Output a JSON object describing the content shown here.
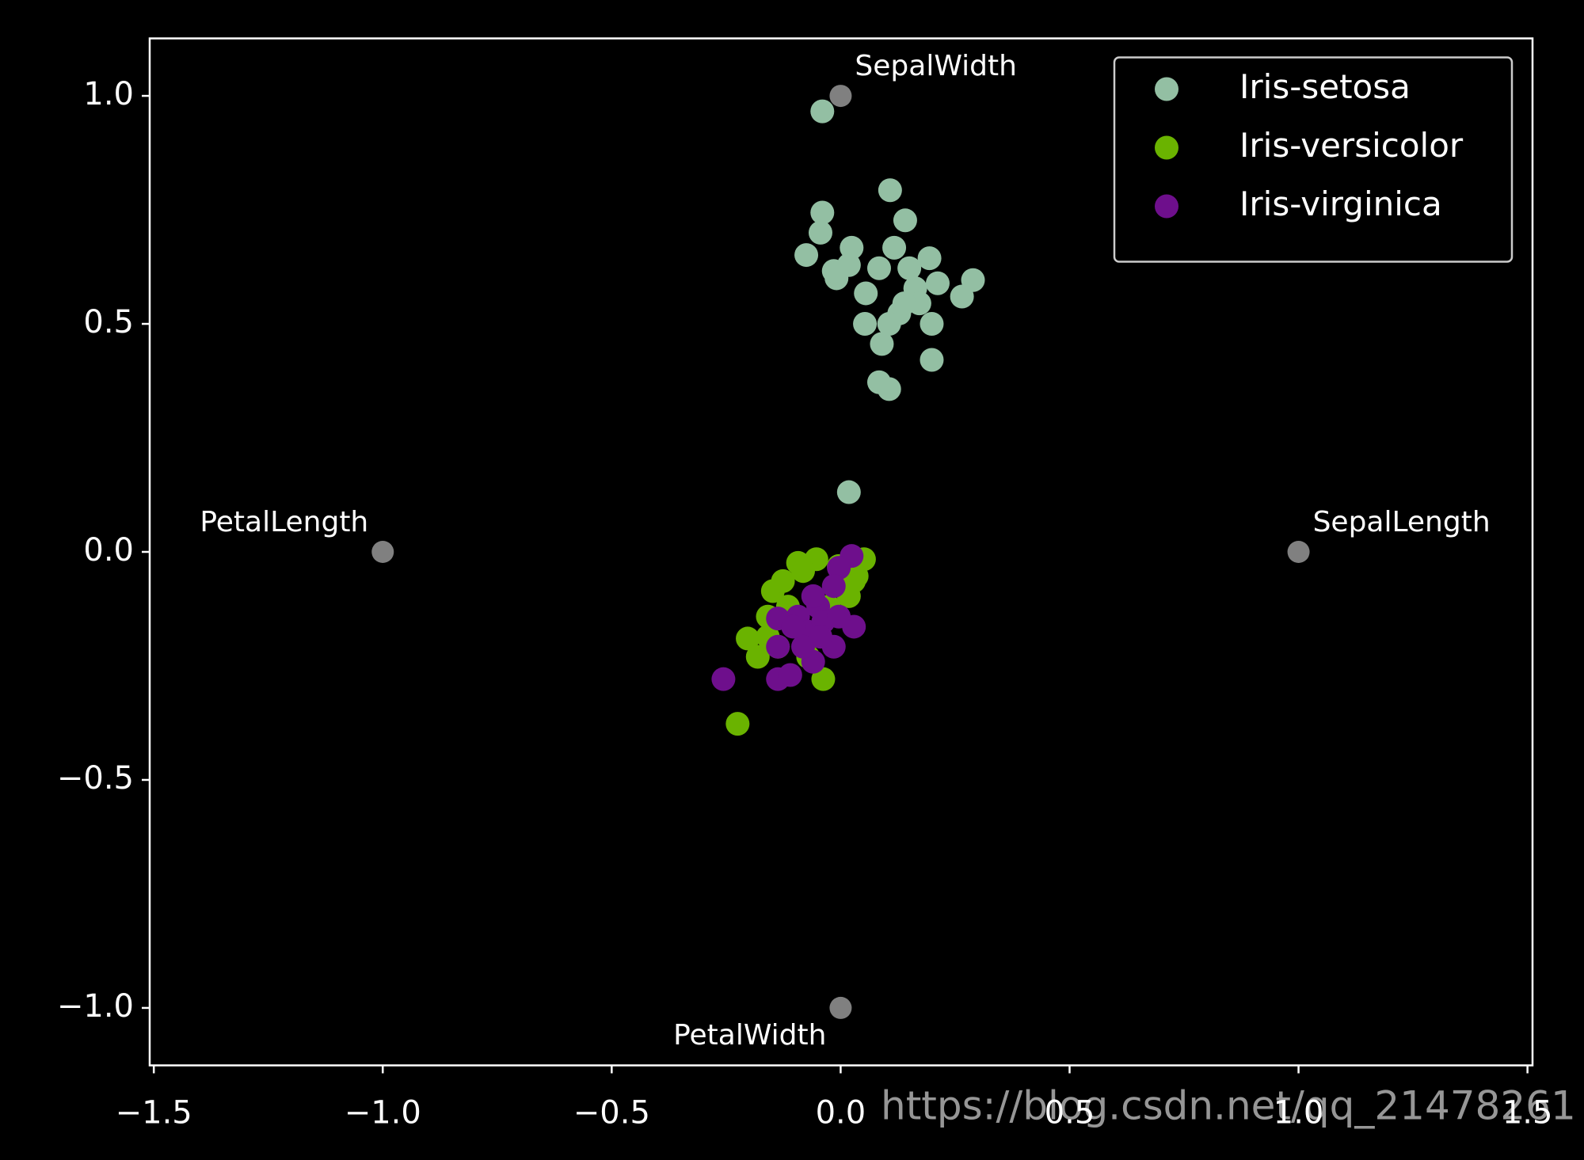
{
  "chart_data": {
    "type": "scatter",
    "xlim": [
      -1.509,
      1.511
    ],
    "ylim": [
      -1.126,
      1.126
    ],
    "xticks": [
      {
        "value": -1.5,
        "label": "−1.5"
      },
      {
        "value": -1.0,
        "label": "−1.0"
      },
      {
        "value": -0.5,
        "label": "−0.5"
      },
      {
        "value": 0,
        "label": "0.0"
      },
      0.5,
      {
        "value": 1.0,
        "label": "1.0"
      },
      {
        "value": 1.5,
        "label": "1.5"
      }
    ],
    "yticks": [
      {
        "value": -1.0,
        "label": "−1.0"
      },
      {
        "value": -0.5,
        "label": "−0.5"
      },
      {
        "value": 0,
        "label": "0.0"
      },
      0.5,
      {
        "value": 1.0,
        "label": "1.0"
      }
    ],
    "legend": "upper right",
    "anchor_color": "#808080",
    "anchors": [
      {
        "label": "SepalLength",
        "x": 1,
        "y": 0
      },
      {
        "label": "SepalWidth",
        "x": 0,
        "y": 1
      },
      {
        "label": "PetalLength",
        "x": -1,
        "y": 0
      },
      {
        "label": "PetalWidth",
        "x": 0,
        "y": -1
      }
    ],
    "series": [
      {
        "name": "Iris-setosa",
        "color": "#93bfa3",
        "x": [
          -0.04,
          0.108,
          -0.04,
          0.141,
          -0.044,
          -0.075,
          0.024,
          0.117,
          0.194,
          0.289,
          0.265,
          -0.009,
          0.055,
          0.163,
          0.212,
          0.172,
          0.128,
          0.199,
          0.053,
          0.09,
          0.199,
          0.084,
          0.106,
          0.018,
          0.084,
          0.15,
          0.139,
          0.106,
          0.018,
          -0.015
        ],
        "y": [
          0.966,
          0.793,
          0.744,
          0.727,
          0.7,
          0.651,
          0.667,
          0.667,
          0.644,
          0.596,
          0.56,
          0.6,
          0.567,
          0.578,
          0.589,
          0.545,
          0.523,
          0.5,
          0.5,
          0.456,
          0.421,
          0.372,
          0.357,
          0.629,
          0.622,
          0.622,
          0.545,
          0.5,
          0.131,
          0.616
        ]
      },
      {
        "name": "Iris-versicolor",
        "color": "#6ab300",
        "x": [
          -0.225,
          -0.203,
          -0.181,
          -0.038,
          -0.148,
          -0.093,
          -0.053,
          0.051,
          0.035,
          -0.159,
          -0.126,
          -0.082,
          -0.004,
          0.018,
          -0.137,
          -0.071,
          -0.026,
          -0.115,
          -0.159,
          0.029
        ],
        "y": [
          -0.377,
          -0.19,
          -0.23,
          -0.279,
          -0.086,
          -0.024,
          -0.016,
          -0.016,
          -0.053,
          -0.142,
          -0.064,
          -0.042,
          -0.031,
          -0.097,
          -0.208,
          -0.23,
          -0.12,
          -0.12,
          -0.186,
          -0.064
        ]
      },
      {
        "name": "Iris-virginica",
        "color": "#6e0f8c",
        "x": [
          -0.256,
          -0.137,
          -0.11,
          -0.137,
          -0.06,
          -0.015,
          0.029,
          0.024,
          -0.004,
          -0.015,
          -0.049,
          -0.093,
          -0.137,
          -0.071,
          -0.038,
          -0.004,
          -0.06,
          -0.082,
          -0.044,
          -0.104
        ],
        "y": [
          -0.279,
          -0.279,
          -0.27,
          -0.208,
          -0.241,
          -0.208,
          -0.164,
          -0.009,
          -0.035,
          -0.075,
          -0.12,
          -0.142,
          -0.146,
          -0.175,
          -0.153,
          -0.142,
          -0.097,
          -0.208,
          -0.186,
          -0.164
        ]
      }
    ],
    "watermark": "https://blog.csdn.net/qq_21478261"
  }
}
